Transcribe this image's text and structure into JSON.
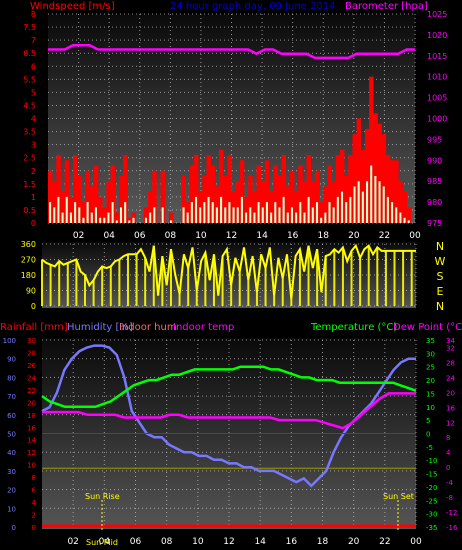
{
  "titles": {
    "windspeed": "Windspeed [m/s]",
    "main": "24 hour graph day, 09 June 2014",
    "barometer": "Barometer [hpa]",
    "rainfall": "Rainfall [mm]",
    "humidity": "Humidity [%]",
    "indoor_hum": "Indoor hum",
    "indoor_temp": "Indoor temp",
    "temperature": "Temperature (°C)",
    "dew_point": "Dew Point (°C)",
    "sun_rise": "Sun Rise",
    "sun_mid": "Sun Mid",
    "sun_set": "Sun Set"
  },
  "colors": {
    "bg_top": "#5a5a5a",
    "bg_bottom": "#000000",
    "grid": "#c8c8c8",
    "wind_speed": "#ff0000",
    "wind_gust": "#ccffcc",
    "wind_avg": "#00cc00",
    "barometer": "#ff00ff",
    "wind_dir": "#ffff00",
    "rainfall": "#ff0000",
    "humidity": "#7777ff",
    "indoor_hum": "#ff6666",
    "indoor_temp": "#ff00ff",
    "temperature": "#00ff00",
    "dew_point": "#ff00ff",
    "wind_axis": "#ff0000",
    "baro_axis": "#ff00ff",
    "dir_axis": "#ffff00",
    "left_axis_hum": "#7777ff",
    "left_axis_rain": "#ff0000",
    "temp_axis": "#00ff00",
    "dew_axis": "#ff00ff",
    "sun_line": "#ffff00",
    "sun_text": "#ffff00",
    "title": "#0000cc",
    "axis_text": "#ffffff"
  },
  "chart_data": [
    {
      "type": "bar",
      "name": "windspeed-panel",
      "xlabel": "",
      "ylabel": "Windspeed [m/s]",
      "x_ticks": [
        "02",
        "04",
        "06",
        "08",
        "10",
        "12",
        "14",
        "16",
        "18",
        "20",
        "22",
        "00"
      ],
      "ylim": [
        0,
        8
      ],
      "y_ticks": [
        "0",
        "0.5",
        "1",
        "1.5",
        "2",
        "2.5",
        "3",
        "3.5",
        "4",
        "4.5",
        "5",
        "5.5",
        "6",
        "6.5",
        "7",
        "7.5",
        "8"
      ],
      "y2lim": [
        975,
        1025
      ],
      "y2_ticks": [
        "975",
        "980",
        "985",
        "990",
        "995",
        "1000",
        "1005",
        "1010",
        "1015",
        "1020",
        "1025"
      ],
      "series": [
        {
          "name": "Wind speed",
          "values": [
            2.0,
            1.6,
            2.6,
            1.2,
            2.4,
            1.0,
            2.6,
            1.8,
            0.8,
            2.0,
            1.4,
            2.2,
            1.0,
            0.6,
            1.6,
            2.2,
            0.4,
            1.8,
            2.6,
            0.2,
            0.4,
            0,
            0,
            0.6,
            1.2,
            2.0,
            0,
            2.0,
            0,
            0.4,
            0,
            0,
            1.8,
            0.8,
            2.2,
            2.6,
            1.2,
            1.8,
            2.6,
            2.2,
            1.4,
            2.8,
            1.8,
            2.6,
            1.2,
            1.6,
            2.4,
            1.0,
            1.8,
            1.2,
            2.2,
            1.6,
            2.4,
            1.2,
            2.2,
            1.8,
            2.6,
            1.4,
            2.0,
            1.2,
            2.2,
            1.6,
            2.6,
            1.6,
            2.0,
            0.8,
            1.4,
            2.2,
            1.6,
            2.6,
            2.8,
            1.8,
            2.6,
            3.4,
            4.0,
            2.8,
            3.6,
            5.6,
            4.2,
            3.8,
            3.4,
            2.6,
            2.4,
            2.4,
            1.6,
            1.2,
            0.6,
            0.0
          ]
        },
        {
          "name": "Wind gust",
          "values": [
            0.8,
            0.6,
            1.0,
            0.4,
            1.0,
            0.4,
            0.8,
            0.6,
            0.2,
            0.8,
            0.4,
            0.6,
            0.2,
            0.2,
            0.4,
            0.8,
            0.1,
            0.6,
            0.8,
            0.1,
            0.2,
            0,
            0,
            0.2,
            0.4,
            0.6,
            0,
            0.6,
            0,
            0.1,
            0,
            0,
            0.6,
            0.4,
            0.8,
            1.0,
            0.6,
            0.8,
            1.0,
            0.8,
            0.6,
            1.0,
            0.6,
            0.8,
            0.6,
            0.6,
            1.0,
            0.4,
            0.6,
            0.4,
            0.8,
            0.6,
            0.8,
            0.4,
            0.8,
            0.6,
            1.0,
            0.4,
            0.6,
            0.4,
            0.8,
            0.4,
            1.0,
            0.6,
            0.8,
            0.2,
            0.4,
            0.8,
            0.6,
            1.0,
            1.2,
            0.8,
            1.0,
            1.4,
            1.6,
            1.2,
            1.6,
            2.2,
            1.8,
            1.6,
            1.4,
            1.0,
            0.8,
            0.6,
            0.4,
            0.2,
            0.1,
            0.0
          ]
        },
        {
          "name": "Barometer",
          "values": [
            1016.5,
            1016.5,
            1016.5,
            1017.5,
            1017.5,
            1017.5,
            1016.5,
            1016.5,
            1016.5,
            1016.5,
            1016.5,
            1016.5,
            1016.5,
            1016.5,
            1016.5,
            1016.5,
            1016.5,
            1016.5,
            1016.5,
            1016.5,
            1016.5,
            1016.5,
            1016.5,
            1016.5,
            1016.5,
            1015.5,
            1016.5,
            1016.5,
            1015.5,
            1015.5,
            1015.5,
            1015.5,
            1014.5,
            1014.5,
            1014.5,
            1014.5,
            1014.5,
            1015.5,
            1015.5,
            1015.5,
            1015.5,
            1015.5,
            1015.5,
            1016.5,
            1016.5
          ]
        }
      ]
    },
    {
      "type": "line",
      "name": "wind-direction-panel",
      "ylim": [
        0,
        360
      ],
      "y_ticks": [
        "0",
        "90",
        "180",
        "270",
        "360"
      ],
      "compass": [
        "N",
        "W",
        "S",
        "E",
        "N"
      ],
      "series": [
        {
          "name": "Wind direction",
          "values": [
            270,
            250,
            240,
            230,
            260,
            240,
            250,
            260,
            270,
            200,
            180,
            120,
            150,
            200,
            230,
            220,
            230,
            260,
            270,
            290,
            300,
            300,
            300,
            330,
            280,
            200,
            350,
            60,
            290,
            120,
            330,
            180,
            70,
            300,
            220,
            340,
            90,
            260,
            310,
            150,
            300,
            60,
            290,
            330,
            120,
            280,
            200,
            340,
            150,
            290,
            80,
            300,
            220,
            340,
            60,
            280,
            160,
            300,
            40,
            290,
            330,
            200,
            350,
            220,
            330,
            80,
            290,
            300,
            330,
            310,
            340,
            260,
            320,
            350,
            280,
            330,
            350,
            300,
            340,
            320,
            320,
            320,
            320,
            320,
            320,
            320,
            320,
            320
          ]
        }
      ]
    },
    {
      "type": "line",
      "name": "temperature-humidity-panel",
      "x_ticks": [
        "02",
        "04",
        "06",
        "08",
        "10",
        "12",
        "14",
        "16",
        "18",
        "20",
        "22",
        "00"
      ],
      "hum_ticks": [
        "0",
        "10",
        "20",
        "30",
        "40",
        "50",
        "60",
        "70",
        "80",
        "90",
        "100"
      ],
      "rain_ticks": [
        "0",
        "2",
        "4",
        "6",
        "8",
        "10",
        "12",
        "14",
        "16",
        "18",
        "20",
        "22",
        "24",
        "26",
        "28",
        "30"
      ],
      "temp_ticks": [
        "-35",
        "-30",
        "-25",
        "-20",
        "-15",
        "-10",
        "-5",
        "0",
        "5",
        "10",
        "15",
        "20",
        "25",
        "30",
        "35"
      ],
      "dew_ticks": [
        "-16",
        "-12",
        "-8",
        "-4",
        "0",
        "4",
        "8",
        "12",
        "16",
        "20",
        "24",
        "28",
        "32",
        "34"
      ],
      "humidity_range": [
        0,
        100
      ],
      "temp_range": [
        -35,
        35
      ],
      "series": [
        {
          "name": "Humidity",
          "values": [
            62,
            64,
            72,
            84,
            90,
            94,
            96,
            97,
            97,
            96,
            92,
            80,
            62,
            56,
            50,
            48,
            48,
            44,
            42,
            40,
            40,
            38,
            38,
            36,
            36,
            34,
            34,
            32,
            32,
            30,
            30,
            30,
            28,
            26,
            24,
            26,
            22,
            26,
            30,
            40,
            48,
            54,
            58,
            62,
            66,
            72,
            78,
            84,
            88,
            90,
            90
          ]
        },
        {
          "name": "Temperature",
          "values": [
            14,
            12,
            11,
            10,
            10,
            10,
            10,
            10,
            11,
            12,
            14,
            16,
            18,
            19,
            20,
            20,
            21,
            22,
            22,
            23,
            24,
            24,
            24,
            24,
            24,
            24,
            25,
            25,
            25,
            25,
            24,
            24,
            23,
            22,
            21,
            21,
            20,
            20,
            20,
            19,
            19,
            19,
            19,
            19,
            19,
            19,
            19,
            18,
            17,
            16
          ]
        },
        {
          "name": "Dew Point",
          "values": [
            8,
            8,
            8,
            8,
            8,
            7,
            7,
            7,
            7,
            6,
            6,
            6,
            6,
            6,
            7,
            7,
            6,
            6,
            6,
            6,
            6,
            6,
            6,
            6,
            6,
            6,
            5,
            5,
            5,
            5,
            5,
            4,
            3,
            2,
            4,
            7,
            10,
            13,
            15,
            15,
            15,
            15
          ]
        },
        {
          "name": "Indoor temp",
          "values": [
            -13,
            -13,
            -13,
            -13,
            -13,
            -13,
            -13,
            -13,
            -13,
            -13,
            -13,
            -13,
            -13,
            -13,
            -13,
            -13,
            -13,
            -13,
            -13,
            -13,
            -13,
            -13,
            -13,
            -13,
            -13,
            -13,
            -13
          ]
        },
        {
          "name": "Rainfall",
          "values": [
            0,
            0,
            0,
            0,
            0,
            0,
            0,
            0,
            0,
            0,
            0,
            0,
            0
          ]
        }
      ]
    }
  ]
}
